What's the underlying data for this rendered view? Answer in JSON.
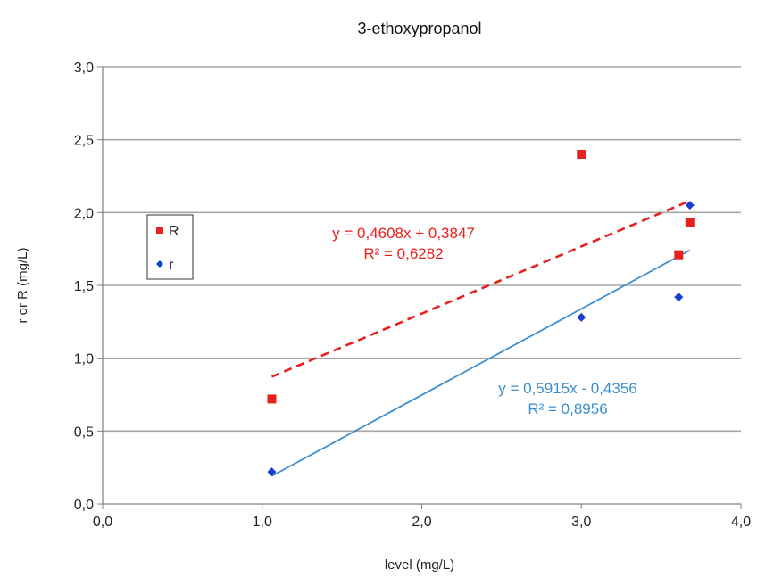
{
  "chart_data": {
    "type": "scatter",
    "title": "3-ethoxypropanol",
    "xlabel": "level (mg/L)",
    "ylabel": "r or R (mg/L)",
    "xlim": [
      0,
      4
    ],
    "ylim": [
      0,
      3
    ],
    "x_ticks": [
      "0,0",
      "1,0",
      "2,0",
      "3,0",
      "4,0"
    ],
    "y_ticks": [
      "0,0",
      "0,5",
      "1,0",
      "1,5",
      "2,0",
      "2,5",
      "3,0"
    ],
    "grid": "horizontal",
    "legend_position": "left",
    "series": [
      {
        "name": "R",
        "marker": "square",
        "color": "#e8201e",
        "points": [
          [
            1.06,
            0.72
          ],
          [
            3.0,
            2.4
          ],
          [
            3.61,
            1.71
          ],
          [
            3.68,
            1.93
          ]
        ],
        "trendline": {
          "style": "dashed",
          "equation": "y = 0,4608x + 0,3847",
          "r2": "R² = 0,6282",
          "slope": 0.4608,
          "intercept": 0.3847,
          "x_range": [
            1.06,
            3.68
          ]
        }
      },
      {
        "name": "r",
        "marker": "diamond",
        "color": "#1a3fcf",
        "line_color": "#3b8fd0",
        "points": [
          [
            1.06,
            0.22
          ],
          [
            3.0,
            1.28
          ],
          [
            3.61,
            1.42
          ],
          [
            3.68,
            2.05
          ]
        ],
        "trendline": {
          "style": "solid",
          "equation": "y = 0,5915x - 0,4356",
          "r2": "R² = 0,8956",
          "slope": 0.5915,
          "intercept": -0.4356,
          "x_range": [
            1.06,
            3.68
          ]
        }
      }
    ]
  }
}
